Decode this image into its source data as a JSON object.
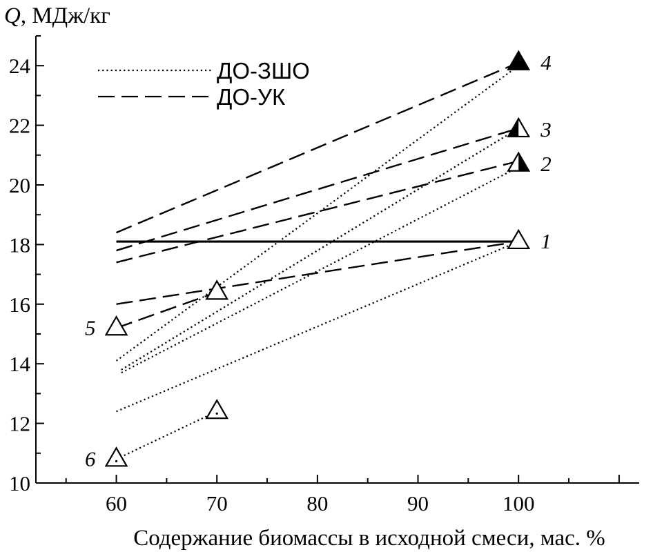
{
  "chart_data": {
    "type": "line",
    "y_label": {
      "symbol": "Q",
      "unit": ", МДж/кг"
    },
    "xlabel": "Содержание биомассы в исходной смеси, мас. %",
    "xlim": [
      52,
      112
    ],
    "ylim": [
      10,
      25
    ],
    "x_ticks": [
      60,
      70,
      80,
      90,
      100
    ],
    "y_ticks": [
      10,
      12,
      14,
      16,
      18,
      20,
      22,
      24
    ],
    "grid": false,
    "legend_position": "top-left",
    "legend": [
      {
        "label": "ДО-ЗШО",
        "style": "dotted"
      },
      {
        "label": "ДО-УК",
        "style": "dashed"
      }
    ],
    "reference_line": {
      "style": "solid",
      "points": [
        [
          60,
          18.1
        ],
        [
          100,
          18.1
        ]
      ]
    },
    "series": [
      {
        "style": "dotted",
        "points": [
          [
            60,
            12.4
          ],
          [
            100,
            18.1
          ]
        ]
      },
      {
        "style": "dotted",
        "points": [
          [
            60.5,
            13.7
          ],
          [
            100,
            20.6
          ]
        ]
      },
      {
        "style": "dotted",
        "points": [
          [
            60.5,
            13.8
          ],
          [
            100,
            21.9
          ]
        ]
      },
      {
        "style": "dotted",
        "points": [
          [
            60,
            14.1
          ],
          [
            100,
            24.0
          ]
        ]
      },
      {
        "style": "dotted",
        "points": [
          [
            60,
            10.8
          ],
          [
            70,
            12.4
          ]
        ]
      },
      {
        "style": "dashed",
        "points": [
          [
            60,
            18.4
          ],
          [
            100,
            24.1
          ]
        ]
      },
      {
        "style": "dashed",
        "points": [
          [
            60,
            17.8
          ],
          [
            100,
            21.9
          ]
        ]
      },
      {
        "style": "dashed",
        "points": [
          [
            60,
            17.4
          ],
          [
            100,
            20.8
          ]
        ]
      },
      {
        "style": "dashed",
        "points": [
          [
            60,
            16.0
          ],
          [
            100,
            18.1
          ]
        ]
      },
      {
        "style": "dashed",
        "points": [
          [
            60,
            15.2
          ],
          [
            70,
            16.4
          ]
        ]
      }
    ],
    "markers": [
      {
        "name": "1",
        "x": 100,
        "y": 18.1,
        "fill": "open",
        "label_side": "right"
      },
      {
        "name": "2",
        "x": 100,
        "y": 20.7,
        "fill": "right-half",
        "label_side": "right"
      },
      {
        "name": "3",
        "x": 100,
        "y": 21.85,
        "fill": "left-half",
        "label_side": "right"
      },
      {
        "name": "4",
        "x": 100,
        "y": 24.1,
        "fill": "solid",
        "label_side": "right"
      },
      {
        "name": "5",
        "x": 60,
        "y": 15.2,
        "fill": "open",
        "label_side": "left"
      },
      {
        "name": "",
        "x": 70,
        "y": 16.4,
        "fill": "open",
        "label_side": "none"
      },
      {
        "name": "6",
        "x": 60,
        "y": 10.8,
        "fill": "open-dot",
        "label_side": "left"
      },
      {
        "name": "",
        "x": 70,
        "y": 12.4,
        "fill": "open-dot",
        "label_side": "none"
      }
    ]
  }
}
